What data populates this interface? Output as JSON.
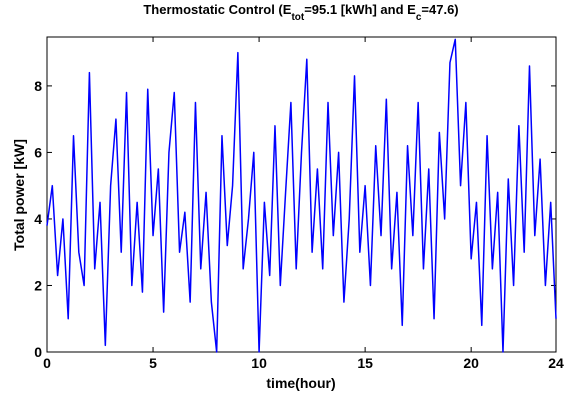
{
  "chart_data": {
    "type": "line",
    "title_parts": [
      "Thermostatic Control (E",
      "tot",
      "=95.1 [kWh] and E",
      "c",
      "=47.6)"
    ],
    "xlabel": "time(hour)",
    "ylabel": "Total power [kW]",
    "xlim": [
      0,
      24
    ],
    "ylim": [
      0,
      9.47
    ],
    "xticks": [
      0,
      5,
      10,
      15,
      20,
      24
    ],
    "yticks": [
      0,
      2,
      4,
      6,
      8
    ],
    "series": [
      {
        "color": "#0000ff",
        "x": [
          0,
          0.25,
          0.5,
          0.75,
          1,
          1.25,
          1.5,
          1.75,
          2,
          2.25,
          2.5,
          2.75,
          3,
          3.25,
          3.5,
          3.75,
          4,
          4.25,
          4.5,
          4.75,
          5,
          5.25,
          5.5,
          5.75,
          6,
          6.25,
          6.5,
          6.75,
          7,
          7.25,
          7.5,
          7.75,
          8,
          8.25,
          8.5,
          8.75,
          9,
          9.25,
          9.5,
          9.75,
          10,
          10.25,
          10.5,
          10.75,
          11,
          11.25,
          11.5,
          11.75,
          12,
          12.25,
          12.5,
          12.75,
          13,
          13.25,
          13.5,
          13.75,
          14,
          14.25,
          14.5,
          14.75,
          15,
          15.25,
          15.5,
          15.75,
          16,
          16.25,
          16.5,
          16.75,
          17,
          17.25,
          17.5,
          17.75,
          18,
          18.25,
          18.5,
          18.75,
          19,
          19.25,
          19.5,
          19.75,
          20,
          20.25,
          20.5,
          20.75,
          21,
          21.25,
          21.5,
          21.75,
          22,
          22.25,
          22.5,
          22.75,
          23,
          23.25,
          23.5,
          23.75,
          24
        ],
        "values": [
          3.8,
          5.0,
          2.3,
          4.0,
          1.0,
          6.5,
          3.0,
          2.0,
          8.4,
          2.5,
          4.5,
          0.2,
          5.0,
          7.0,
          3.0,
          7.8,
          2.0,
          4.5,
          1.8,
          7.9,
          3.5,
          5.5,
          1.2,
          6.0,
          7.8,
          3.0,
          4.2,
          1.5,
          7.5,
          2.5,
          4.8,
          1.5,
          0.0,
          6.5,
          3.2,
          5.0,
          9.0,
          2.5,
          4.0,
          6.0,
          0.0,
          4.5,
          2.3,
          6.8,
          2.0,
          4.8,
          7.5,
          2.5,
          6.0,
          8.8,
          3.0,
          5.5,
          2.5,
          7.5,
          3.5,
          6.0,
          1.5,
          4.0,
          8.3,
          3.0,
          5.0,
          2.0,
          6.2,
          3.5,
          7.6,
          2.5,
          4.8,
          0.8,
          6.2,
          3.5,
          7.5,
          2.5,
          5.5,
          1.0,
          6.6,
          4.0,
          8.7,
          9.4,
          5.0,
          7.5,
          2.8,
          4.5,
          0.8,
          6.5,
          2.5,
          4.8,
          0.0,
          5.2,
          2.0,
          6.8,
          3.0,
          8.6,
          3.5,
          5.8,
          2.0,
          4.5,
          1.0
        ]
      }
    ]
  }
}
